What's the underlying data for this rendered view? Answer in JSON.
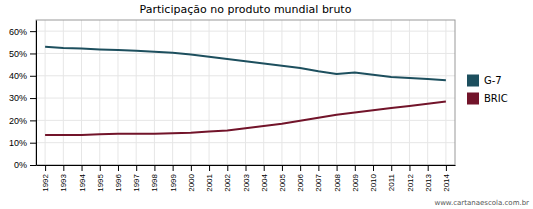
{
  "chart_data": {
    "type": "line",
    "title": "Participação no produto mundial bruto",
    "x": [
      1992,
      1993,
      1994,
      1995,
      1996,
      1997,
      1998,
      1999,
      2000,
      2001,
      2002,
      2003,
      2004,
      2005,
      2006,
      2007,
      2008,
      2009,
      2010,
      2011,
      2012,
      2013,
      2014
    ],
    "series": [
      {
        "name": "G-7",
        "color": "#1d4f5e",
        "values": [
          53.0,
          52.5,
          52.2,
          51.8,
          51.5,
          51.2,
          50.8,
          50.3,
          49.5,
          48.5,
          47.5,
          46.5,
          45.5,
          44.5,
          43.5,
          42.0,
          40.8,
          41.5,
          40.5,
          39.5,
          39.0,
          38.5,
          38.0
        ]
      },
      {
        "name": "BRIC",
        "color": "#72142a",
        "values": [
          13.5,
          13.5,
          13.5,
          13.8,
          14.0,
          14.0,
          14.0,
          14.2,
          14.5,
          15.0,
          15.5,
          16.5,
          17.5,
          18.5,
          19.8,
          21.2,
          22.5,
          23.5,
          24.5,
          25.5,
          26.5,
          27.5,
          28.5
        ]
      }
    ],
    "xlim": [
      1991.5,
      2014.5
    ],
    "xticks": [
      1992,
      1993,
      1994,
      1995,
      1996,
      1997,
      1998,
      1999,
      2000,
      2001,
      2002,
      2003,
      2004,
      2005,
      2006,
      2007,
      2008,
      2009,
      2010,
      2011,
      2012,
      2013,
      2014
    ],
    "ylim": [
      0,
      65
    ],
    "yticks": [
      {
        "value": 0,
        "label": "0%"
      },
      {
        "value": 10,
        "label": "10%"
      },
      {
        "value": 20,
        "label": "20%"
      },
      {
        "value": 30,
        "label": "30%"
      },
      {
        "value": 40,
        "label": "40%"
      },
      {
        "value": 50,
        "label": "50%"
      },
      {
        "value": 60,
        "label": "60%"
      }
    ],
    "grid": true,
    "legend": "right",
    "annotations": [
      "www.cartanaescola.com.br"
    ]
  }
}
